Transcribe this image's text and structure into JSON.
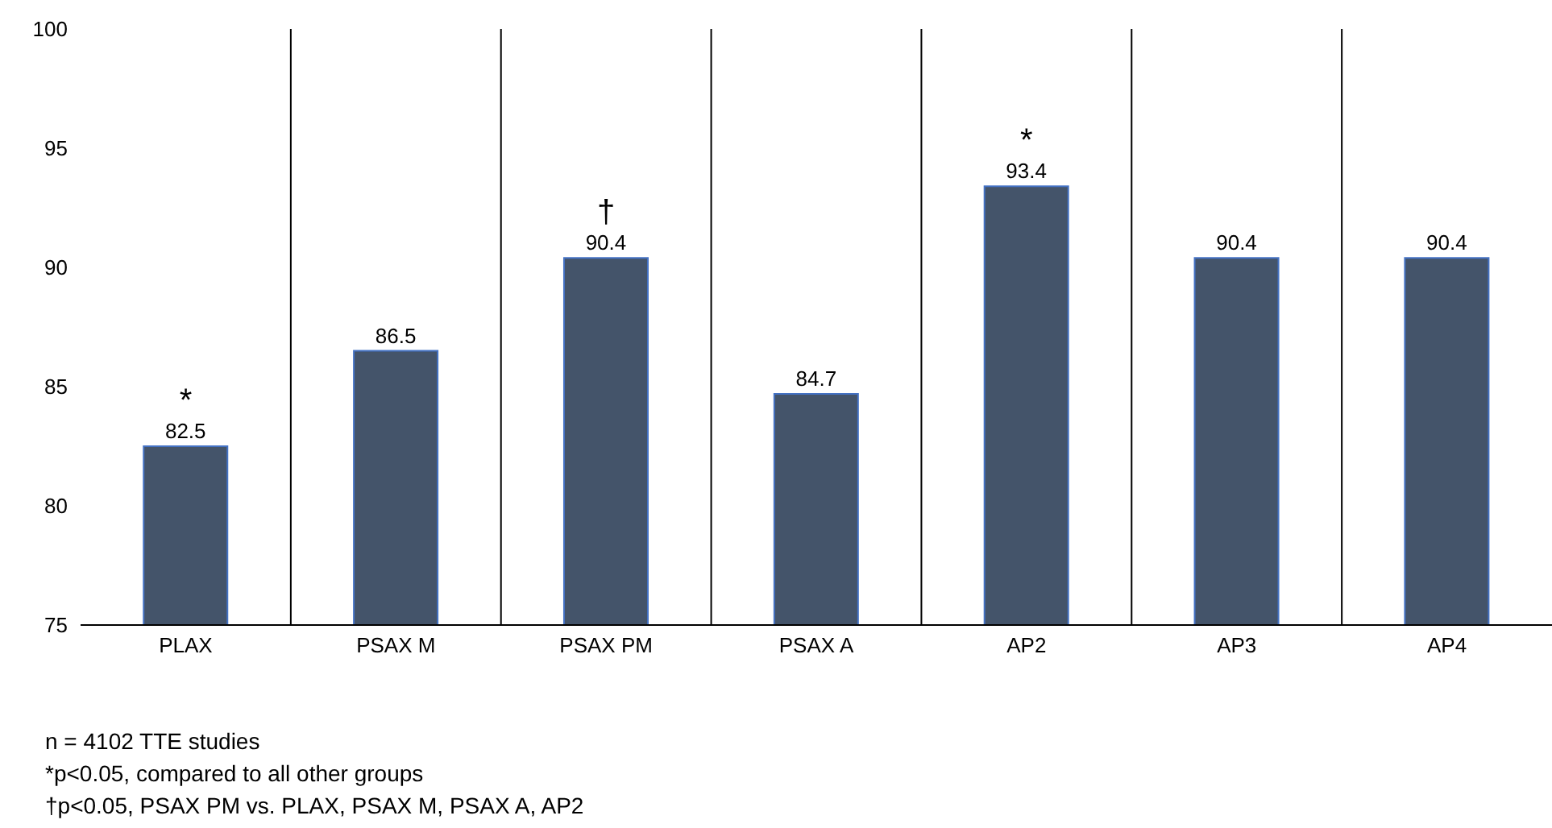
{
  "chart_data": {
    "type": "bar",
    "categories": [
      "PLAX",
      "PSAX M",
      "PSAX PM",
      "PSAX A",
      "AP2",
      "AP3",
      "AP4"
    ],
    "values": [
      82.5,
      86.5,
      90.4,
      84.7,
      93.4,
      90.4,
      90.4
    ],
    "color": "#44546a",
    "ylim": [
      75,
      100
    ],
    "yticks": [
      75,
      80,
      85,
      90,
      95,
      100
    ],
    "grid": "x",
    "data_labels": true,
    "annotations": [
      {
        "text": "*",
        "x": "PLAX",
        "y": 82.5
      },
      {
        "text": "†",
        "x": "PSAX PM",
        "y": 90.4
      },
      {
        "text": "*",
        "x": "AP2",
        "y": 93.4
      },
      "n = 4102 TTE studies",
      "*p<0.05, compared to all other groups",
      "†p<0.05, PSAX PM vs. PLAX, PSAX M, PSAX A, AP2"
    ]
  }
}
